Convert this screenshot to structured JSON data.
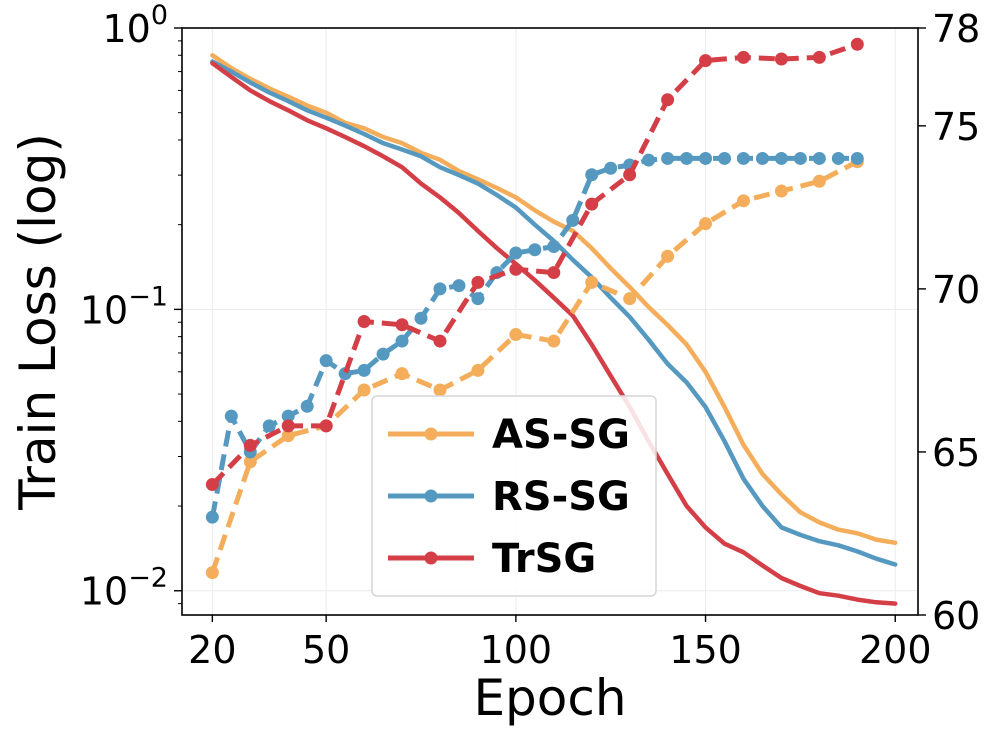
{
  "chart_data": {
    "type": "line",
    "xlabel": "Epoch",
    "ylabel": "Train Loss (log)",
    "x_ticks": [
      20,
      50,
      100,
      150,
      200
    ],
    "xlim": [
      12,
      206
    ],
    "left_axis": {
      "scale": "log",
      "ylim": [
        0.0082,
        1.0
      ],
      "tick_labels": [
        {
          "value": 1.0,
          "base": "10",
          "exp": "0"
        },
        {
          "value": 0.1,
          "base": "10",
          "exp": "−1"
        },
        {
          "value": 0.01,
          "base": "10",
          "exp": "−2"
        }
      ]
    },
    "right_axis": {
      "scale": "linear",
      "ylim": [
        60,
        78
      ],
      "ticks": [
        60,
        65,
        70,
        75,
        78
      ]
    },
    "loss_series": [
      {
        "name": "AS-SG",
        "color": "#f4ad5a",
        "x": [
          20,
          25,
          30,
          35,
          40,
          45,
          50,
          55,
          60,
          65,
          70,
          75,
          80,
          85,
          90,
          95,
          100,
          105,
          110,
          115,
          120,
          125,
          130,
          135,
          140,
          145,
          150,
          155,
          160,
          165,
          170,
          175,
          180,
          185,
          190,
          195,
          200
        ],
        "values": [
          0.8,
          0.72,
          0.66,
          0.61,
          0.57,
          0.53,
          0.5,
          0.46,
          0.44,
          0.41,
          0.39,
          0.36,
          0.34,
          0.31,
          0.29,
          0.27,
          0.25,
          0.225,
          0.205,
          0.19,
          0.165,
          0.14,
          0.12,
          0.102,
          0.088,
          0.075,
          0.06,
          0.045,
          0.033,
          0.026,
          0.022,
          0.019,
          0.0175,
          0.0165,
          0.016,
          0.0152,
          0.0148
        ]
      },
      {
        "name": "RS-SG",
        "color": "#5599c0",
        "x": [
          20,
          25,
          30,
          35,
          40,
          45,
          50,
          55,
          60,
          65,
          70,
          75,
          80,
          85,
          90,
          95,
          100,
          105,
          110,
          115,
          120,
          125,
          130,
          135,
          140,
          145,
          150,
          155,
          160,
          165,
          170,
          175,
          180,
          185,
          190,
          195,
          200
        ],
        "values": [
          0.76,
          0.7,
          0.64,
          0.59,
          0.55,
          0.51,
          0.48,
          0.45,
          0.42,
          0.39,
          0.37,
          0.35,
          0.32,
          0.3,
          0.28,
          0.255,
          0.23,
          0.2,
          0.175,
          0.15,
          0.13,
          0.11,
          0.094,
          0.078,
          0.064,
          0.055,
          0.045,
          0.034,
          0.025,
          0.02,
          0.0168,
          0.0158,
          0.015,
          0.0145,
          0.0138,
          0.013,
          0.0124
        ]
      },
      {
        "name": "TrSG",
        "color": "#d43f47",
        "x": [
          20,
          25,
          30,
          35,
          40,
          45,
          50,
          55,
          60,
          65,
          70,
          75,
          80,
          85,
          90,
          95,
          100,
          105,
          110,
          115,
          120,
          125,
          130,
          135,
          140,
          145,
          150,
          155,
          160,
          165,
          170,
          175,
          180,
          185,
          190,
          195,
          200
        ],
        "values": [
          0.75,
          0.67,
          0.6,
          0.55,
          0.51,
          0.47,
          0.44,
          0.41,
          0.38,
          0.35,
          0.32,
          0.28,
          0.25,
          0.22,
          0.19,
          0.165,
          0.145,
          0.127,
          0.11,
          0.095,
          0.075,
          0.058,
          0.045,
          0.034,
          0.026,
          0.02,
          0.0168,
          0.0147,
          0.0137,
          0.0123,
          0.0111,
          0.0104,
          0.0098,
          0.0096,
          0.0093,
          0.0091,
          0.009
        ]
      }
    ],
    "accuracy_series": [
      {
        "name": "AS-SG",
        "color": "#f4ad5a",
        "x": [
          20,
          30,
          40,
          50,
          60,
          70,
          80,
          90,
          100,
          110,
          120,
          130,
          140,
          150,
          160,
          170,
          180,
          190
        ],
        "values": [
          61.3,
          64.7,
          65.5,
          65.8,
          66.9,
          67.4,
          66.9,
          67.5,
          68.6,
          68.4,
          70.2,
          69.7,
          71.0,
          72.0,
          72.7,
          73.0,
          73.3,
          73.9
        ]
      },
      {
        "name": "RS-SG",
        "color": "#5599c0",
        "x": [
          20,
          25,
          30,
          35,
          40,
          45,
          50,
          55,
          60,
          65,
          70,
          75,
          80,
          85,
          90,
          95,
          100,
          105,
          110,
          115,
          120,
          125,
          130,
          135,
          140,
          145,
          150,
          155,
          160,
          165,
          170,
          175,
          180,
          185,
          190
        ],
        "values": [
          63.0,
          66.1,
          65.0,
          65.8,
          66.1,
          66.4,
          67.8,
          67.4,
          67.5,
          68.0,
          68.4,
          69.1,
          70.0,
          70.1,
          69.7,
          70.5,
          71.1,
          71.2,
          71.3,
          72.1,
          73.5,
          73.7,
          73.8,
          73.95,
          74.0,
          74.0,
          74.0,
          74.0,
          74.0,
          74.0,
          74.0,
          74.0,
          74.0,
          74.0,
          74.0
        ]
      },
      {
        "name": "TrSG",
        "color": "#d43f47",
        "x": [
          20,
          30,
          40,
          50,
          60,
          70,
          80,
          90,
          100,
          110,
          120,
          130,
          140,
          150,
          160,
          170,
          180,
          190
        ],
        "values": [
          64.0,
          65.2,
          65.8,
          65.8,
          69.0,
          68.9,
          68.4,
          70.2,
          70.6,
          70.5,
          72.6,
          73.5,
          75.8,
          77.0,
          77.1,
          77.05,
          77.1,
          77.5
        ]
      }
    ],
    "legend": {
      "position": "lower center",
      "entries": [
        "AS-SG",
        "RS-SG",
        "TrSG"
      ]
    }
  }
}
